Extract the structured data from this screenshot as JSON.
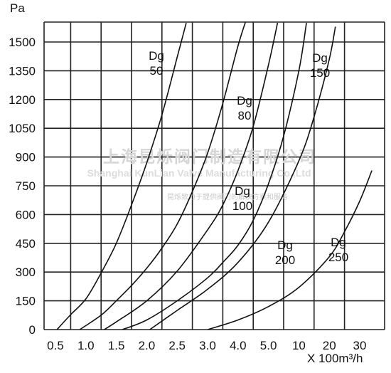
{
  "chart_data": {
    "type": "line",
    "ylabel": "Pa",
    "xlabel": "X 100m³/h",
    "x_tick_labels": [
      "0.5",
      "1.0",
      "1.5",
      "2.0",
      "2.5",
      "3.0",
      "4.0",
      "5.0",
      "10",
      "20",
      "30"
    ],
    "y_tick_labels": [
      "0",
      "150",
      "300",
      "450",
      "600",
      "750",
      "900",
      "1050",
      "1200",
      "1350",
      "1500"
    ],
    "ylim": [
      0,
      1500
    ],
    "grid": true,
    "series": [
      {
        "name": "Dg 50",
        "label_top": "Dg",
        "label_bottom": "50",
        "x_index": [
          0.05,
          0.5,
          1.0,
          1.5,
          2.0,
          2.5,
          3.0,
          3.5,
          4.0,
          4.3
        ],
        "y": [
          0,
          78,
          160,
          295,
          450,
          650,
          870,
          1120,
          1420,
          1600
        ]
      },
      {
        "name": "Dg 80",
        "label_top": "Dg",
        "label_bottom": "80",
        "x_index": [
          0.8,
          1.5,
          2.0,
          2.5,
          3.0,
          3.5,
          4.0,
          4.5,
          5.0,
          5.5,
          6.0,
          6.3
        ],
        "y": [
          0,
          75,
          150,
          230,
          320,
          425,
          550,
          720,
          920,
          1180,
          1480,
          1630
        ]
      },
      {
        "name": "Dg 100",
        "label_top": "Dg",
        "label_bottom": "100",
        "x_index": [
          1.6,
          2.0,
          3.0,
          4.0,
          5.0,
          5.5,
          6.0,
          6.5,
          7.0,
          7.3
        ],
        "y": [
          0,
          40,
          150,
          305,
          520,
          650,
          830,
          1060,
          1380,
          1600
        ]
      },
      {
        "name": "Dg 150",
        "label_top": "Dg",
        "label_bottom": "150",
        "x_index": [
          2.2,
          3.0,
          4.0,
          5.0,
          5.5,
          6.0,
          6.5,
          7.0,
          7.5,
          8.0,
          8.25
        ],
        "y": [
          0,
          50,
          150,
          270,
          350,
          440,
          570,
          760,
          1010,
          1350,
          1600
        ]
      },
      {
        "name": "Dg 200",
        "label_top": "Dg",
        "label_bottom": "200",
        "x_index": [
          3.1,
          4.0,
          5.0,
          6.0,
          7.0,
          8.0,
          8.5,
          9.0,
          9.2
        ],
        "y": [
          0,
          100,
          210,
          350,
          560,
          880,
          1110,
          1410,
          1580
        ]
      },
      {
        "name": "Dg 250",
        "label_top": "Dg",
        "label_bottom": "250",
        "x_index": [
          5.0,
          6.0,
          7.0,
          8.0,
          9.0,
          9.5,
          10.0,
          10.4
        ],
        "y": [
          0,
          50,
          120,
          220,
          380,
          510,
          670,
          830
        ]
      }
    ]
  },
  "watermark": {
    "company_cn": "上海昆烁阀门制造有限公司",
    "company_en": "Shanghai KunLian Valve Manufacturing Co.,Ltd",
    "slogan_cn": "昆烁致力于提供阀门的解决方案和服务"
  }
}
